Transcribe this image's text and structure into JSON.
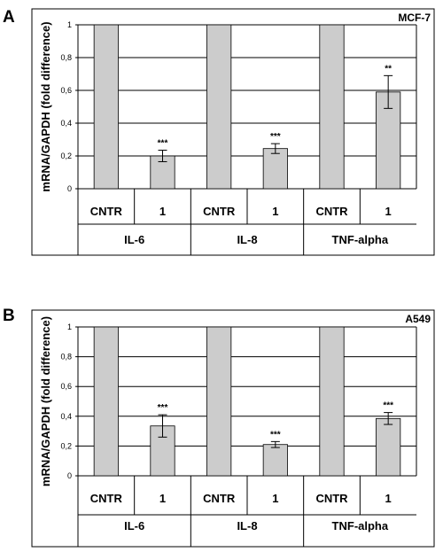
{
  "chart_data": [
    {
      "type": "bar",
      "panel": "A",
      "cell_line": "MCF-7",
      "ylabel": "mRNA/GAPDH  (fold difference)",
      "ylim": [
        0,
        1
      ],
      "yticks": [
        "0",
        "0,2",
        "0,4",
        "0,6",
        "0,8",
        "1"
      ],
      "grid": true,
      "groups": [
        "IL-6",
        "IL-8",
        "TNF-alpha"
      ],
      "conditions": [
        "CNTR",
        "1"
      ],
      "values": [
        1,
        0.2,
        1,
        0.245,
        1,
        0.59
      ],
      "errors": [
        0,
        0.035,
        0,
        0.03,
        0,
        0.1
      ],
      "significance": [
        "",
        "***",
        "",
        "***",
        "",
        "**"
      ]
    },
    {
      "type": "bar",
      "panel": "B",
      "cell_line": "A549",
      "ylabel": "mRNA/GAPDH  (fold difference)",
      "ylim": [
        0,
        1
      ],
      "yticks": [
        "0",
        "0,2",
        "0,4",
        "0,6",
        "0,8",
        "1"
      ],
      "grid": true,
      "groups": [
        "IL-6",
        "IL-8",
        "TNF-alpha"
      ],
      "conditions": [
        "CNTR",
        "1"
      ],
      "values": [
        1,
        0.335,
        1,
        0.21,
        1,
        0.385
      ],
      "errors": [
        0,
        0.075,
        0,
        0.02,
        0,
        0.04
      ],
      "significance": [
        "",
        "***",
        "",
        "***",
        "",
        "***"
      ]
    }
  ]
}
